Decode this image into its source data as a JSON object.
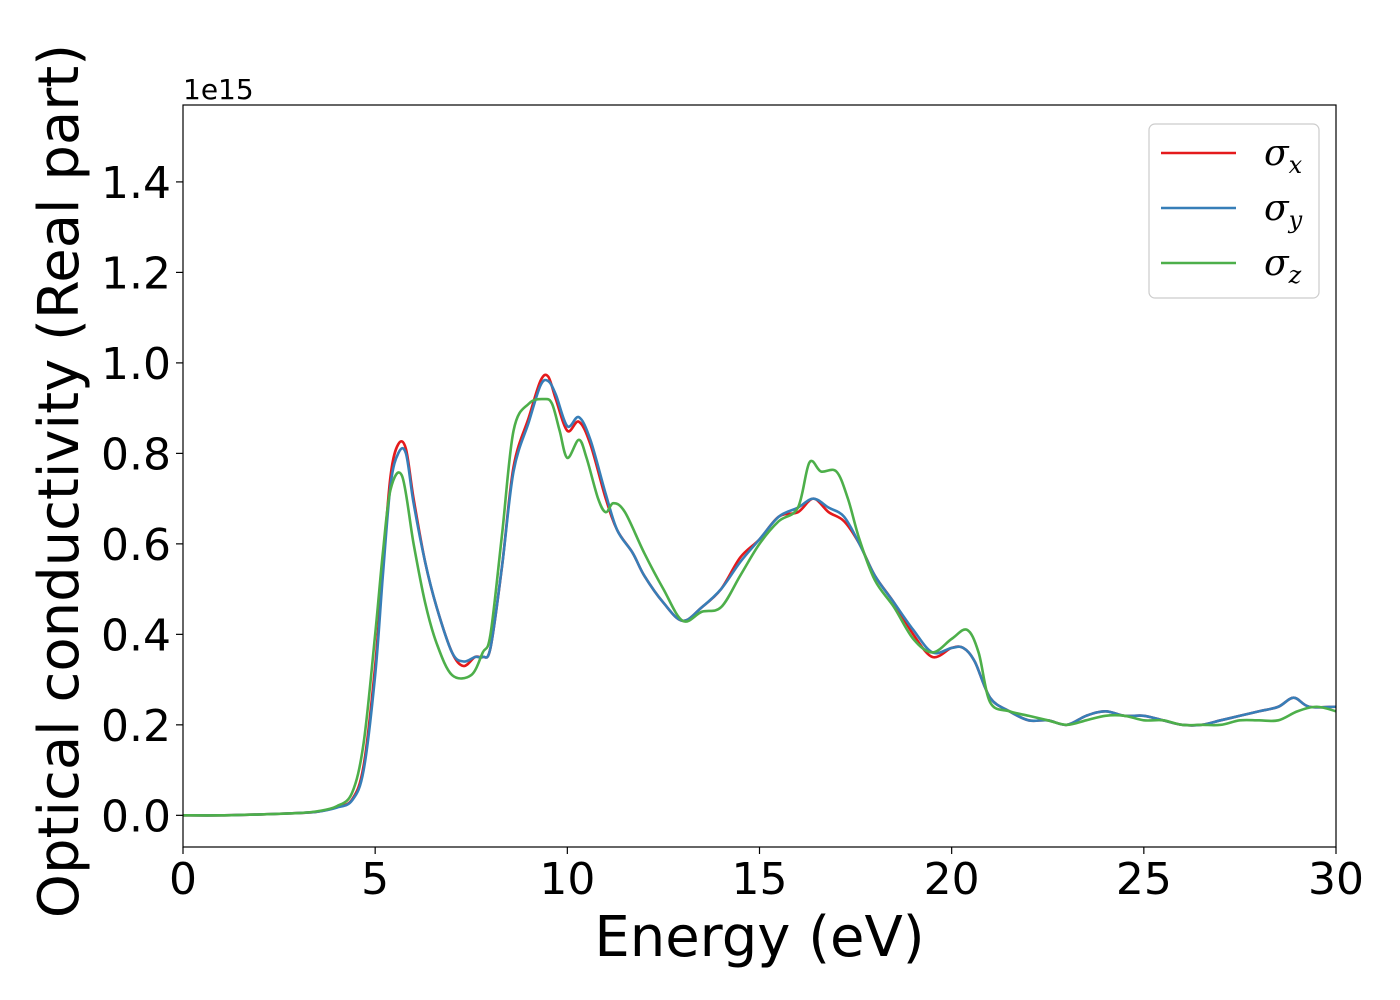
{
  "chart_data": {
    "type": "line",
    "title": "",
    "xlabel": "Energy (eV)",
    "ylabel": "Optical conductivity (Real part)",
    "y_offset_label": "1e15",
    "xlim": [
      0,
      30
    ],
    "ylim": [
      -0.07,
      1.57
    ],
    "xticks": [
      0,
      5,
      10,
      15,
      20,
      25,
      30
    ],
    "xtick_labels": [
      "0",
      "5",
      "10",
      "15",
      "20",
      "25",
      "30"
    ],
    "yticks": [
      0.0,
      0.2,
      0.4,
      0.6,
      0.8,
      1.0,
      1.2,
      1.4
    ],
    "ytick_labels": [
      "0.0",
      "0.2",
      "0.4",
      "0.6",
      "0.8",
      "1.0",
      "1.2",
      "1.4"
    ],
    "grid": false,
    "legend_position": "top-right",
    "series": [
      {
        "name": "σx",
        "legend_symbol": "σ",
        "legend_subscript": "x",
        "color": "#e41a1c",
        "x": [
          0,
          1,
          2,
          3,
          3.5,
          4,
          4.4,
          4.7,
          5,
          5.2,
          5.4,
          5.6,
          5.8,
          6.0,
          6.3,
          6.6,
          7.0,
          7.3,
          7.6,
          7.8,
          8.0,
          8.3,
          8.6,
          9.0,
          9.3,
          9.5,
          9.7,
          10.0,
          10.3,
          10.6,
          11.0,
          11.3,
          11.7,
          12.0,
          12.5,
          13.0,
          13.5,
          14.0,
          14.5,
          15.0,
          15.5,
          16.0,
          16.4,
          16.8,
          17.2,
          17.6,
          18.0,
          18.5,
          19.0,
          19.5,
          20.0,
          20.3,
          20.6,
          21.0,
          21.5,
          22.0,
          22.5,
          23.0,
          23.5,
          24.0,
          24.5,
          25.0,
          25.5,
          26.0,
          26.5,
          27.0,
          27.5,
          28.0,
          28.5,
          28.9,
          29.3,
          30.0
        ],
        "y": [
          0.0,
          0.0,
          0.002,
          0.005,
          0.008,
          0.018,
          0.035,
          0.11,
          0.33,
          0.55,
          0.75,
          0.82,
          0.81,
          0.7,
          0.56,
          0.46,
          0.36,
          0.33,
          0.35,
          0.35,
          0.37,
          0.55,
          0.77,
          0.88,
          0.96,
          0.97,
          0.92,
          0.85,
          0.87,
          0.82,
          0.7,
          0.63,
          0.58,
          0.53,
          0.47,
          0.43,
          0.46,
          0.5,
          0.57,
          0.61,
          0.66,
          0.67,
          0.7,
          0.67,
          0.65,
          0.6,
          0.53,
          0.47,
          0.4,
          0.35,
          0.37,
          0.37,
          0.34,
          0.26,
          0.23,
          0.21,
          0.21,
          0.2,
          0.22,
          0.23,
          0.22,
          0.22,
          0.21,
          0.2,
          0.2,
          0.21,
          0.22,
          0.23,
          0.24,
          0.26,
          0.24,
          0.24
        ]
      },
      {
        "name": "σy",
        "legend_symbol": "σ",
        "legend_subscript": "y",
        "color": "#377eb8",
        "x": [
          0,
          1,
          2,
          3,
          3.5,
          4,
          4.4,
          4.7,
          5,
          5.2,
          5.4,
          5.6,
          5.8,
          6.0,
          6.3,
          6.6,
          7.0,
          7.3,
          7.6,
          7.8,
          8.0,
          8.3,
          8.6,
          9.0,
          9.3,
          9.5,
          9.7,
          10.0,
          10.3,
          10.6,
          11.0,
          11.3,
          11.7,
          12.0,
          12.5,
          13.0,
          13.5,
          14.0,
          14.5,
          15.0,
          15.5,
          16.0,
          16.4,
          16.8,
          17.2,
          17.6,
          18.0,
          18.5,
          19.0,
          19.5,
          20.0,
          20.3,
          20.6,
          21.0,
          21.5,
          22.0,
          22.5,
          23.0,
          23.5,
          24.0,
          24.5,
          25.0,
          25.5,
          26.0,
          26.5,
          27.0,
          27.5,
          28.0,
          28.5,
          28.9,
          29.3,
          30.0
        ],
        "y": [
          0.0,
          0.0,
          0.002,
          0.005,
          0.008,
          0.017,
          0.033,
          0.1,
          0.31,
          0.53,
          0.73,
          0.8,
          0.8,
          0.69,
          0.56,
          0.46,
          0.36,
          0.34,
          0.35,
          0.35,
          0.37,
          0.55,
          0.76,
          0.87,
          0.95,
          0.96,
          0.93,
          0.86,
          0.88,
          0.83,
          0.71,
          0.63,
          0.58,
          0.53,
          0.47,
          0.43,
          0.46,
          0.5,
          0.56,
          0.61,
          0.66,
          0.68,
          0.7,
          0.68,
          0.66,
          0.6,
          0.53,
          0.47,
          0.41,
          0.36,
          0.37,
          0.37,
          0.34,
          0.26,
          0.23,
          0.21,
          0.21,
          0.2,
          0.22,
          0.23,
          0.22,
          0.22,
          0.21,
          0.2,
          0.2,
          0.21,
          0.22,
          0.23,
          0.24,
          0.26,
          0.24,
          0.24
        ]
      },
      {
        "name": "σz",
        "legend_symbol": "σ",
        "legend_subscript": "z",
        "color": "#4daf4a",
        "x": [
          0,
          1,
          2,
          3,
          3.5,
          4,
          4.4,
          4.7,
          5,
          5.2,
          5.4,
          5.7,
          6.0,
          6.3,
          6.6,
          7.0,
          7.5,
          7.8,
          8.0,
          8.3,
          8.6,
          9.0,
          9.4,
          9.6,
          9.8,
          10.0,
          10.3,
          10.5,
          10.8,
          11.0,
          11.2,
          11.5,
          12.0,
          12.5,
          13.0,
          13.5,
          14.0,
          14.5,
          15.0,
          15.5,
          16.0,
          16.3,
          16.6,
          17.0,
          17.3,
          17.6,
          18.0,
          18.5,
          19.0,
          19.5,
          20.0,
          20.4,
          20.7,
          21.0,
          21.5,
          22.0,
          22.5,
          23.0,
          23.5,
          24.0,
          24.5,
          25.0,
          25.5,
          26.0,
          26.5,
          27.0,
          27.5,
          28.0,
          28.5,
          29.0,
          29.5,
          30.0
        ],
        "y": [
          0.0,
          0.0,
          0.002,
          0.005,
          0.009,
          0.02,
          0.05,
          0.16,
          0.4,
          0.58,
          0.72,
          0.75,
          0.6,
          0.47,
          0.38,
          0.31,
          0.31,
          0.36,
          0.4,
          0.62,
          0.85,
          0.91,
          0.92,
          0.91,
          0.85,
          0.79,
          0.83,
          0.79,
          0.7,
          0.67,
          0.69,
          0.67,
          0.58,
          0.5,
          0.43,
          0.45,
          0.46,
          0.53,
          0.6,
          0.65,
          0.68,
          0.78,
          0.76,
          0.76,
          0.7,
          0.61,
          0.52,
          0.46,
          0.39,
          0.36,
          0.39,
          0.41,
          0.36,
          0.25,
          0.23,
          0.22,
          0.21,
          0.2,
          0.21,
          0.22,
          0.22,
          0.21,
          0.21,
          0.2,
          0.2,
          0.2,
          0.21,
          0.21,
          0.21,
          0.23,
          0.24,
          0.23
        ]
      }
    ]
  }
}
